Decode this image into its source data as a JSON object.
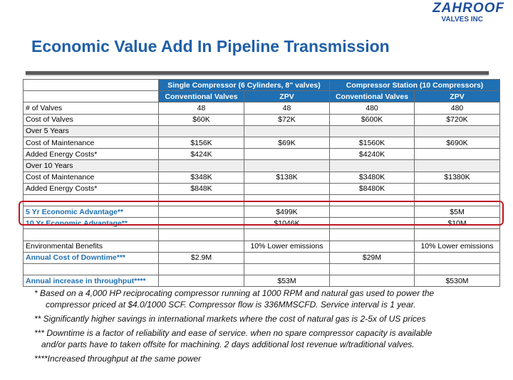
{
  "logo": {
    "name": "ZAHROOF",
    "sub": "VALVES INC"
  },
  "title": "Economic Value Add In Pipeline Transmission",
  "table": {
    "group_headers": [
      "Single Compressor (6 Cylinders, 8\" valves)",
      "Compressor Station (10 Compressors)"
    ],
    "sub_headers": [
      "Conventional Valves",
      "ZPV",
      "Conventional Valves",
      "ZPV"
    ],
    "rows": [
      {
        "label": "# of Valves",
        "values": [
          "48",
          "48",
          "480",
          "480"
        ]
      },
      {
        "label": "Cost of Valves",
        "values": [
          "$60K",
          "$72K",
          "$600K",
          "$720K"
        ]
      },
      {
        "label": "Over 5 Years",
        "values": [
          "",
          "",
          "",
          ""
        ]
      },
      {
        "label": "Cost of Maintenance",
        "values": [
          "$156K",
          "$69K",
          "$1560K",
          "$690K"
        ]
      },
      {
        "label": "Added Energy Costs*",
        "values": [
          "$424K",
          "",
          "$4240K",
          ""
        ]
      },
      {
        "label": "Over 10 Years",
        "values": [
          "",
          "",
          "",
          ""
        ]
      },
      {
        "label": "Cost of Maintenance",
        "values": [
          "$348K",
          "$138K",
          "$3480K",
          "$1380K"
        ]
      },
      {
        "label": "Added Energy Costs*",
        "values": [
          "$848K",
          "",
          "$8480K",
          ""
        ]
      },
      {
        "label": "5 Yr Economic Advantage**",
        "values": [
          "",
          "$499K",
          "",
          "$5M"
        ]
      },
      {
        "label": "10 Yr Economic Advantage**",
        "values": [
          "",
          "$1046K",
          "",
          "$10M"
        ]
      },
      {
        "label": "Environmental Benefits",
        "values": [
          "",
          "10% Lower emissions",
          "",
          "10% Lower emissions"
        ]
      },
      {
        "label": "Annual Cost of Downtime***",
        "values": [
          "$2.9M",
          "",
          "$29M",
          ""
        ]
      },
      {
        "label": "Annual increase in throughput****",
        "values": [
          "",
          "$53M",
          "",
          "$530M"
        ]
      }
    ]
  },
  "notes": [
    {
      "line1": "*  Based on a 4,000 HP reciprocating compressor running at 1000 RPM and natural gas used to power the",
      "line2": "compressor priced at $4.0/1000 SCF. Compressor flow is 336MMSCFD. Service interval is 1 year."
    },
    {
      "line1": "**  Significantly  higher savings  in international markets where the cost of natural gas is 2-5x of US prices",
      "line2": ""
    },
    {
      "line1": "*** Downtime is a factor of reliability and ease of service. when no spare compressor capacity is available",
      "line2": "and/or parts have to taken offsite for machining.  2 days additional lost revenue w/traditional valves."
    },
    {
      "line1": "****Increased throughput at the same power",
      "line2": ""
    }
  ]
}
